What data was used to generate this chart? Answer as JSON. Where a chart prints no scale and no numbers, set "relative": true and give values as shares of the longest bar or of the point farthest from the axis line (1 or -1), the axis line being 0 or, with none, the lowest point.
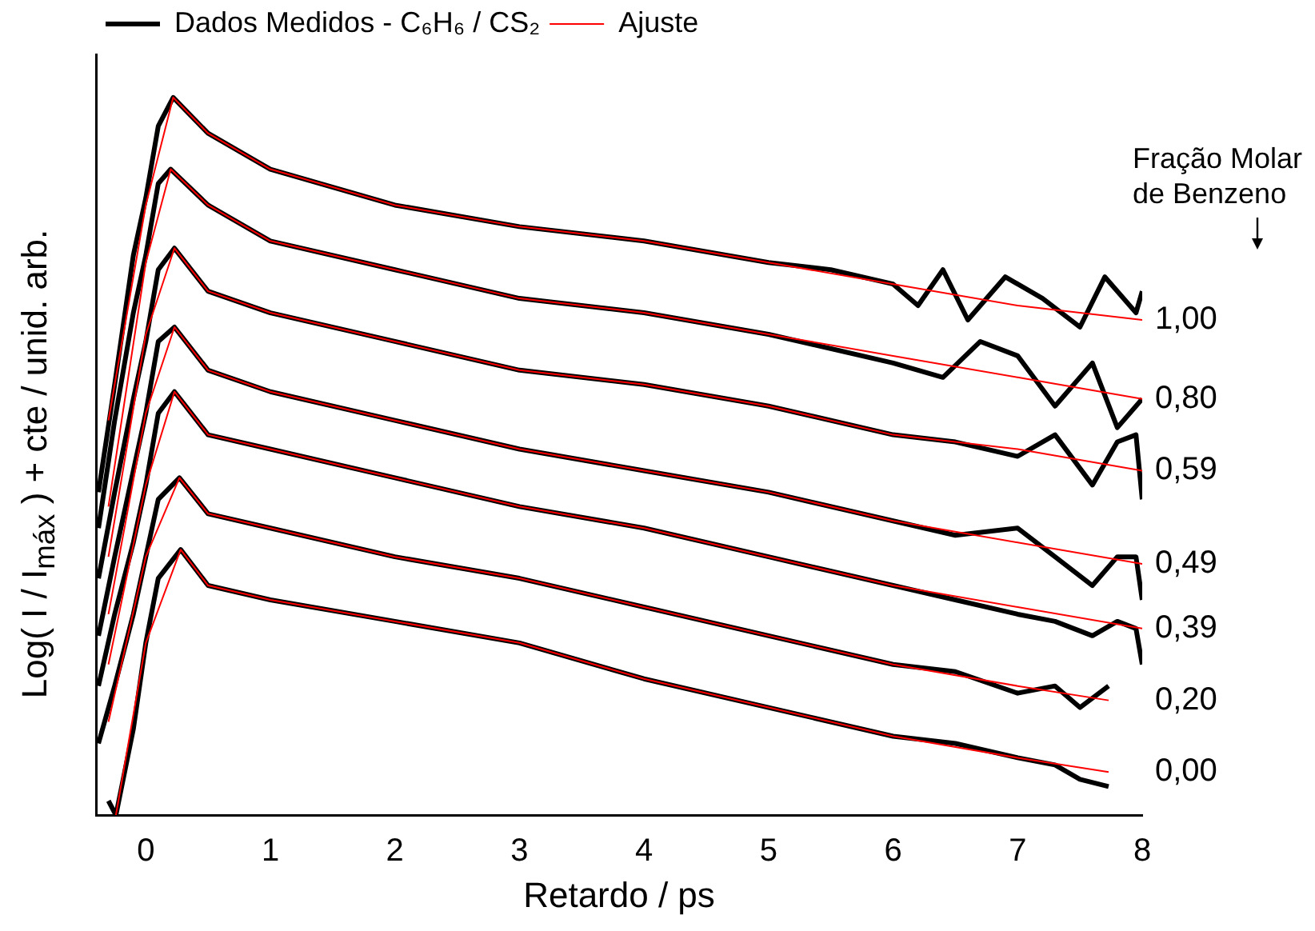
{
  "chart_data": {
    "type": "line",
    "relative": true,
    "xlabel": "Retardo / ps",
    "ylabel": "Log( I / I$_{máx}$ ) + cte / unid. arb.",
    "xlim": [
      -0.4,
      8
    ],
    "xticks": [
      0,
      1,
      2,
      3,
      4,
      5,
      6,
      7,
      8
    ],
    "legend": "top",
    "grid": false,
    "marker": "none",
    "line_style": "solid",
    "series": [
      {
        "name": "Dados Medidos - C₆H₆ / CS₂",
        "color": "#000000",
        "x": [
          -0.38,
          -0.25,
          -0.1,
          0,
          0.1,
          0.22,
          0.5,
          1,
          2,
          3,
          4,
          5,
          5.5,
          6,
          6.2,
          6.4,
          6.6,
          6.9,
          7.2,
          7.5,
          7.7,
          7.95,
          8
        ],
        "values": [
          0.45,
          0.6,
          0.78,
          0.86,
          0.96,
          1.0,
          0.95,
          0.9,
          0.85,
          0.82,
          0.8,
          0.77,
          0.76,
          0.74,
          0.71,
          0.76,
          0.69,
          0.75,
          0.72,
          0.68,
          0.75,
          0.7,
          0.73
        ]
      },
      {
        "color": "#000000",
        "x": [
          -0.38,
          -0.25,
          -0.1,
          0,
          0.1,
          0.2,
          0.5,
          1,
          2,
          3,
          4,
          5,
          6,
          6.4,
          6.7,
          7,
          7.3,
          7.6,
          7.8,
          8
        ],
        "values": [
          0.4,
          0.55,
          0.7,
          0.78,
          0.88,
          0.9,
          0.85,
          0.8,
          0.76,
          0.72,
          0.7,
          0.67,
          0.63,
          0.61,
          0.66,
          0.64,
          0.57,
          0.63,
          0.54,
          0.58
        ]
      },
      {
        "color": "#000000",
        "x": [
          -0.38,
          -0.25,
          -0.1,
          0,
          0.1,
          0.23,
          0.5,
          1,
          2,
          3,
          4,
          5,
          6,
          6.5,
          7,
          7.3,
          7.6,
          7.8,
          7.95,
          8
        ],
        "values": [
          0.33,
          0.45,
          0.58,
          0.66,
          0.76,
          0.79,
          0.73,
          0.7,
          0.66,
          0.62,
          0.6,
          0.57,
          0.53,
          0.52,
          0.5,
          0.53,
          0.46,
          0.52,
          0.53,
          0.44
        ]
      },
      {
        "color": "#000000",
        "x": [
          -0.38,
          -0.25,
          -0.1,
          0,
          0.1,
          0.23,
          0.5,
          1,
          2,
          3,
          4,
          5,
          6,
          6.5,
          7,
          7.3,
          7.6,
          7.8,
          7.95,
          8
        ],
        "values": [
          0.25,
          0.36,
          0.48,
          0.56,
          0.66,
          0.68,
          0.62,
          0.59,
          0.55,
          0.51,
          0.48,
          0.45,
          0.41,
          0.39,
          0.4,
          0.36,
          0.32,
          0.36,
          0.36,
          0.3
        ]
      },
      {
        "color": "#000000",
        "x": [
          -0.38,
          -0.25,
          -0.1,
          0,
          0.1,
          0.23,
          0.5,
          1,
          2,
          3,
          4,
          5,
          6,
          6.5,
          7,
          7.3,
          7.6,
          7.8,
          7.95,
          8
        ],
        "values": [
          0.18,
          0.28,
          0.38,
          0.46,
          0.56,
          0.59,
          0.53,
          0.51,
          0.47,
          0.43,
          0.4,
          0.36,
          0.32,
          0.3,
          0.28,
          0.27,
          0.25,
          0.27,
          0.26,
          0.21
        ]
      },
      {
        "color": "#000000",
        "x": [
          -0.38,
          -0.25,
          -0.1,
          0,
          0.1,
          0.27,
          0.5,
          1,
          2,
          3,
          4,
          5,
          6,
          6.5,
          7,
          7.3,
          7.5,
          7.73
        ],
        "values": [
          0.1,
          0.18,
          0.28,
          0.36,
          0.44,
          0.47,
          0.42,
          0.4,
          0.36,
          0.33,
          0.29,
          0.25,
          0.21,
          0.2,
          0.17,
          0.18,
          0.15,
          0.18
        ]
      },
      {
        "color": "#000000",
        "x": [
          -0.3,
          -0.24,
          -0.1,
          0,
          0.1,
          0.28,
          0.5,
          1,
          2,
          3,
          4,
          5,
          6,
          6.5,
          7,
          7.3,
          7.5,
          7.73
        ],
        "values": [
          0.02,
          0,
          0.12,
          0.24,
          0.33,
          0.37,
          0.32,
          0.3,
          0.27,
          0.24,
          0.19,
          0.15,
          0.11,
          0.1,
          0.08,
          0.07,
          0.05,
          0.04
        ]
      },
      {
        "name": "Ajuste",
        "color": "#ff0000",
        "x": [
          -0.3,
          0,
          0.22,
          0.5,
          1,
          2,
          3,
          4,
          5,
          6,
          7,
          8
        ],
        "values": [
          0.55,
          0.85,
          1.0,
          0.95,
          0.9,
          0.85,
          0.82,
          0.8,
          0.77,
          0.74,
          0.71,
          0.69
        ]
      },
      {
        "color": "#ff0000",
        "x": [
          -0.3,
          0,
          0.2,
          0.5,
          1,
          2,
          3,
          4,
          5,
          6,
          7,
          8
        ],
        "values": [
          0.43,
          0.77,
          0.9,
          0.85,
          0.8,
          0.76,
          0.72,
          0.7,
          0.67,
          0.64,
          0.61,
          0.58
        ]
      },
      {
        "color": "#ff0000",
        "x": [
          -0.3,
          0,
          0.23,
          0.5,
          1,
          2,
          3,
          4,
          5,
          6,
          7,
          8
        ],
        "values": [
          0.36,
          0.67,
          0.79,
          0.73,
          0.7,
          0.66,
          0.62,
          0.6,
          0.57,
          0.53,
          0.51,
          0.48
        ]
      },
      {
        "color": "#ff0000",
        "x": [
          -0.3,
          0,
          0.23,
          0.5,
          1,
          2,
          3,
          4,
          5,
          6,
          7,
          8
        ],
        "values": [
          0.28,
          0.56,
          0.68,
          0.62,
          0.59,
          0.55,
          0.51,
          0.48,
          0.45,
          0.41,
          0.38,
          0.35
        ]
      },
      {
        "color": "#ff0000",
        "x": [
          -0.3,
          0,
          0.23,
          0.5,
          1,
          2,
          3,
          4,
          5,
          6,
          7,
          8
        ],
        "values": [
          0.21,
          0.46,
          0.59,
          0.53,
          0.51,
          0.47,
          0.43,
          0.4,
          0.36,
          0.32,
          0.29,
          0.26
        ]
      },
      {
        "color": "#ff0000",
        "x": [
          -0.3,
          0,
          0.27,
          0.5,
          1,
          2,
          3,
          4,
          5,
          6,
          7,
          7.73
        ],
        "values": [
          0.13,
          0.36,
          0.47,
          0.42,
          0.4,
          0.36,
          0.33,
          0.29,
          0.25,
          0.21,
          0.18,
          0.16
        ]
      },
      {
        "color": "#ff0000",
        "x": [
          -0.24,
          0,
          0.28,
          0.5,
          1,
          2,
          3,
          4,
          5,
          6,
          7,
          7.73
        ],
        "values": [
          0,
          0.24,
          0.37,
          0.32,
          0.3,
          0.27,
          0.24,
          0.19,
          0.15,
          0.11,
          0.08,
          0.06
        ]
      }
    ],
    "annotations": [
      "Fração Molar\nde Benzeno",
      "1,00",
      "0,80",
      "0,59",
      "0,49",
      "0,39",
      "0,20",
      "0,00"
    ]
  }
}
